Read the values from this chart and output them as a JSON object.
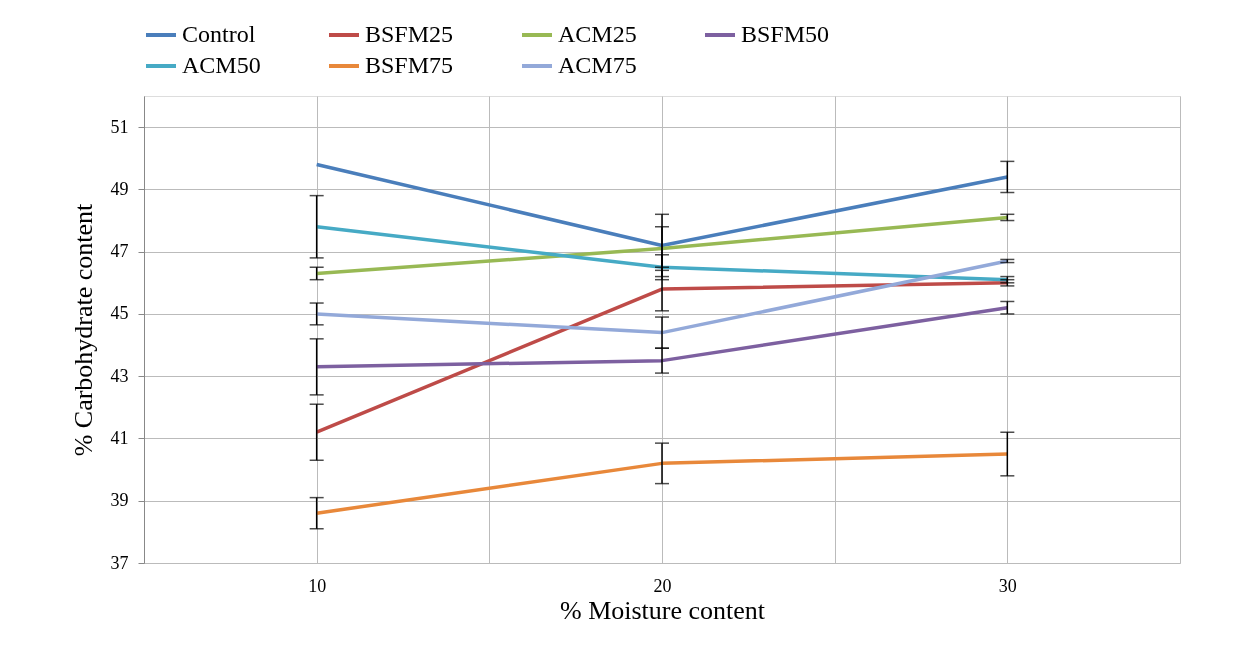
{
  "chart_data": {
    "type": "line",
    "xlabel": "% Moisture content",
    "ylabel": "% Carbohydrate content",
    "x": [
      10,
      20,
      30
    ],
    "xlim": [
      5,
      35
    ],
    "xticks": [
      {
        "value": 5,
        "label": null
      },
      10,
      {
        "value": 15,
        "label": null
      },
      20,
      {
        "value": 25,
        "label": null
      },
      30,
      {
        "value": 35,
        "label": null
      }
    ],
    "ylim": [
      37,
      52
    ],
    "yticks": [
      37,
      39,
      41,
      43,
      45,
      47,
      49,
      51
    ],
    "grid": true,
    "legend": "top",
    "marker": "none",
    "line_style": "solid",
    "series": [
      {
        "name": "Control",
        "color": "#4a7ebb",
        "values": [
          49.8,
          47.2,
          49.4
        ],
        "errors": [
          null,
          1.0,
          0.5
        ]
      },
      {
        "name": "BSFM25",
        "color": "#be4b48",
        "values": [
          41.2,
          45.8,
          46.0
        ],
        "errors": [
          0.9,
          0.7,
          0.1
        ]
      },
      {
        "name": "ACM25",
        "color": "#98b954",
        "values": [
          46.3,
          47.1,
          48.1
        ],
        "errors": [
          0.2,
          0.7,
          0.1
        ]
      },
      {
        "name": "BSFM50",
        "color": "#7d60a0",
        "values": [
          43.3,
          43.5,
          45.2
        ],
        "errors": [
          0.9,
          0.4,
          0.2
        ]
      },
      {
        "name": "ACM50",
        "color": "#46aac5",
        "values": [
          47.8,
          46.5,
          46.1
        ],
        "errors": [
          1.0,
          0.4,
          0.1
        ]
      },
      {
        "name": "BSFM75",
        "color": "#e8883a",
        "values": [
          38.6,
          40.2,
          40.5
        ],
        "errors": [
          0.5,
          0.65,
          0.7
        ]
      },
      {
        "name": "ACM75",
        "color": "#93a9d9",
        "values": [
          45.0,
          44.4,
          46.7
        ],
        "errors": [
          0.35,
          0.5,
          0.05
        ]
      }
    ]
  }
}
